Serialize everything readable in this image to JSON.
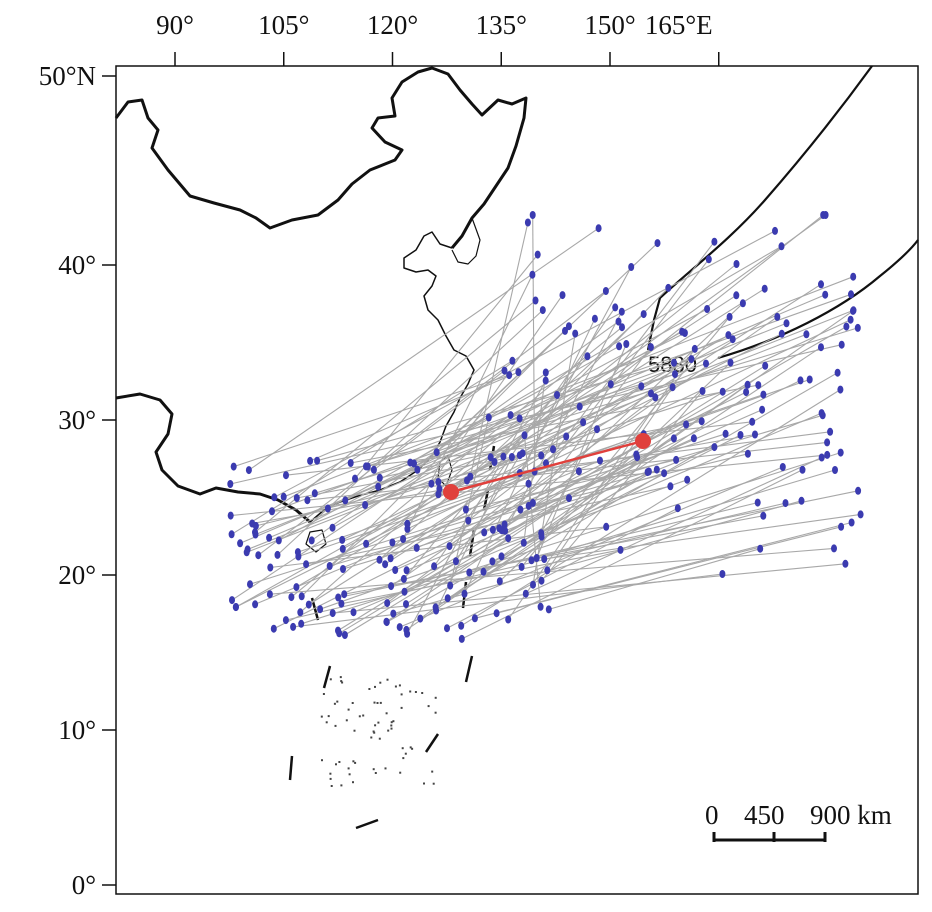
{
  "axes": {
    "lon_ticks": [
      {
        "value": 90,
        "label": "90°"
      },
      {
        "value": 105,
        "label": "105°"
      },
      {
        "value": 120,
        "label": "120°"
      },
      {
        "value": 135,
        "label": "135°"
      },
      {
        "value": 150,
        "label": "150°"
      },
      {
        "value": 165,
        "label": "165°E"
      }
    ],
    "lat_ticks": [
      {
        "value": 50,
        "label": "50°N"
      },
      {
        "value": 40,
        "label": "40°"
      },
      {
        "value": 30,
        "label": "30°"
      },
      {
        "value": 20,
        "label": "20°"
      },
      {
        "value": 10,
        "label": "10°"
      },
      {
        "value": 0,
        "label": "0°"
      }
    ]
  },
  "contour": {
    "label": "5880",
    "color": "#111111"
  },
  "scale_bar": {
    "labels": [
      "0",
      "450",
      "900 km"
    ]
  },
  "colors": {
    "track": "#a8a8a8",
    "point": "#3b3bb0",
    "mean_track": "#e0403c",
    "coast": "#111111"
  }
}
